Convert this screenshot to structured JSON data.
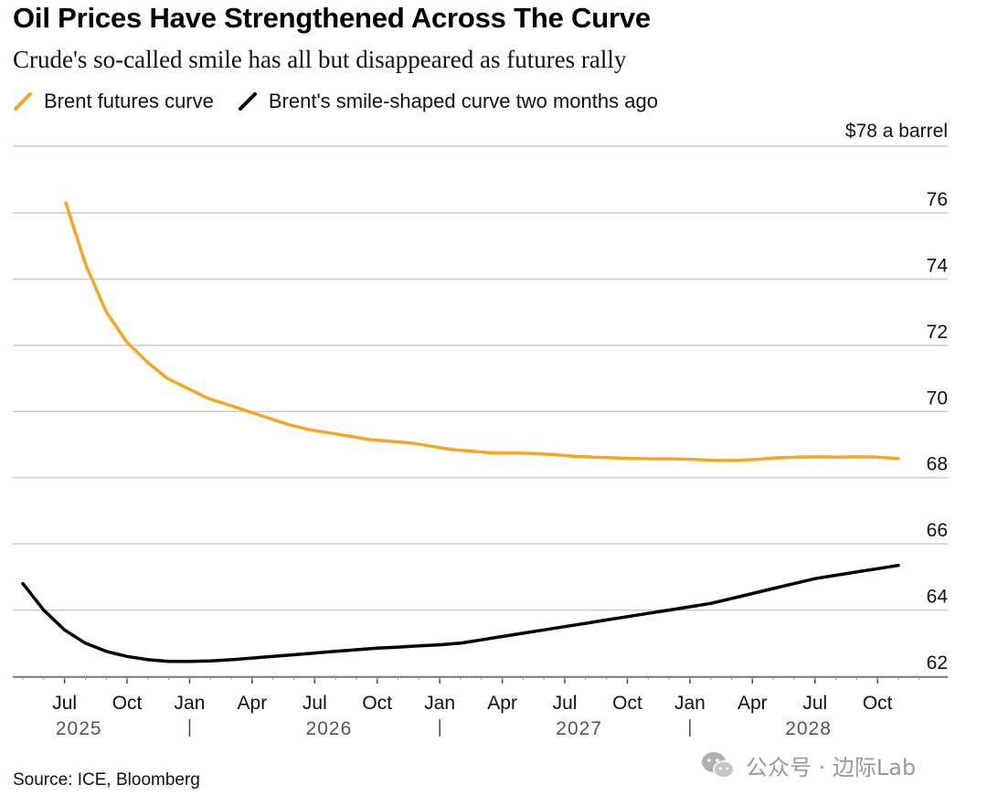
{
  "header": {
    "title": "Oil Prices Have Strengthened Across The Curve",
    "subtitle": "Crude's so-called smile has all but disappeared as futures rally"
  },
  "footer": {
    "source": "Source: ICE, Bloomberg",
    "watermark": "公众号 · 边际Lab"
  },
  "colors": {
    "brent_futures": "#f5a623",
    "two_months_ago": "#000000",
    "grid": "#cccccc"
  },
  "chart_data": {
    "type": "line",
    "title": "Oil Prices Have Strengthened Across The Curve",
    "subtitle": "Crude's so-called smile has all but disappeared as futures rally",
    "ylabel": "$78 a barrel",
    "ylim": [
      61.5,
      78
    ],
    "yticks": [
      62,
      64,
      66,
      68,
      70,
      72,
      74,
      76
    ],
    "ytick_labels": [
      "62",
      "64",
      "66",
      "68",
      "70",
      "72",
      "74",
      "76"
    ],
    "xlim": [
      "2025-05",
      "2028-12"
    ],
    "xticks": [
      {
        "x": "2025-07",
        "label": "Jul"
      },
      {
        "x": "2025-10",
        "label": "Oct"
      },
      {
        "x": "2026-01",
        "label": "Jan"
      },
      {
        "x": "2026-04",
        "label": "Apr"
      },
      {
        "x": "2026-07",
        "label": "Jul"
      },
      {
        "x": "2026-10",
        "label": "Oct"
      },
      {
        "x": "2027-01",
        "label": "Jan"
      },
      {
        "x": "2027-04",
        "label": "Apr"
      },
      {
        "x": "2027-07",
        "label": "Jul"
      },
      {
        "x": "2027-10",
        "label": "Oct"
      },
      {
        "x": "2028-01",
        "label": "Jan"
      },
      {
        "x": "2028-04",
        "label": "Apr"
      },
      {
        "x": "2028-07",
        "label": "Jul"
      },
      {
        "x": "2028-10",
        "label": "Oct"
      }
    ],
    "year_labels": [
      {
        "label": "2025",
        "x": "2025-09"
      },
      {
        "label": "2026",
        "x": "2026-09"
      },
      {
        "label": "2027",
        "x": "2027-09"
      },
      {
        "label": "2028",
        "x": "2028-08"
      }
    ],
    "year_separators": [
      "2026-01",
      "2027-01",
      "2028-01"
    ],
    "grid": true,
    "legend_position": "top-left",
    "series": [
      {
        "name": "Brent futures curve",
        "color": "#f5a623",
        "x": [
          "2025-06",
          "2025-07",
          "2025-08",
          "2025-09",
          "2025-10",
          "2025-11",
          "2025-12",
          "2026-01",
          "2026-02",
          "2026-03",
          "2026-04",
          "2026-05",
          "2026-06",
          "2026-07",
          "2026-08",
          "2026-09",
          "2026-10",
          "2026-11",
          "2026-12",
          "2027-01",
          "2027-02",
          "2027-03",
          "2027-04",
          "2027-05",
          "2027-06",
          "2027-07",
          "2027-08",
          "2027-09",
          "2027-10",
          "2027-11",
          "2027-12",
          "2028-01",
          "2028-02",
          "2028-03",
          "2028-04",
          "2028-05",
          "2028-06",
          "2028-07",
          "2028-08",
          "2028-09",
          "2028-10",
          "2028-11"
        ],
        "values": [
          76.3,
          74.4,
          73.0,
          72.1,
          71.5,
          71.0,
          70.7,
          70.4,
          70.2,
          70.0,
          69.8,
          69.6,
          69.45,
          69.35,
          69.25,
          69.15,
          69.1,
          69.05,
          68.95,
          68.85,
          68.8,
          68.75,
          68.75,
          68.73,
          68.7,
          68.65,
          68.62,
          68.6,
          68.58,
          68.57,
          68.57,
          68.55,
          68.52,
          68.52,
          68.55,
          68.6,
          68.62,
          68.63,
          68.62,
          68.63,
          68.62,
          68.58
        ],
        "x_offset": "2025-07"
      },
      {
        "name": "Brent's smile-shaped curve two months ago",
        "color": "#000000",
        "x": [
          "2025-05",
          "2025-06",
          "2025-07",
          "2025-08",
          "2025-09",
          "2025-10",
          "2025-11",
          "2025-12",
          "2026-01",
          "2026-02",
          "2026-03",
          "2026-04",
          "2026-05",
          "2026-06",
          "2026-07",
          "2026-08",
          "2026-09",
          "2026-10",
          "2026-11",
          "2026-12",
          "2027-01",
          "2027-02",
          "2027-03",
          "2027-04",
          "2027-05",
          "2027-06",
          "2027-07",
          "2027-08",
          "2027-09",
          "2027-10",
          "2027-11",
          "2027-12",
          "2028-01",
          "2028-02",
          "2028-03",
          "2028-04",
          "2028-05",
          "2028-06",
          "2028-07",
          "2028-08",
          "2028-09",
          "2028-10",
          "2028-11"
        ],
        "values": [
          64.8,
          64.0,
          63.4,
          63.0,
          62.75,
          62.6,
          62.5,
          62.45,
          62.45,
          62.46,
          62.5,
          62.55,
          62.6,
          62.65,
          62.7,
          62.75,
          62.8,
          62.85,
          62.88,
          62.92,
          62.95,
          63.0,
          63.1,
          63.2,
          63.3,
          63.4,
          63.5,
          63.6,
          63.7,
          63.8,
          63.9,
          64.0,
          64.1,
          64.2,
          64.35,
          64.5,
          64.65,
          64.8,
          64.95,
          65.05,
          65.15,
          65.25,
          65.35
        ]
      }
    ]
  }
}
